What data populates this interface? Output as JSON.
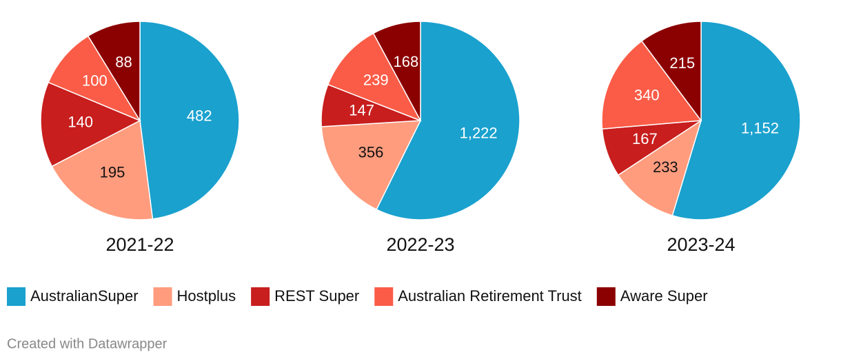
{
  "chart_data": [
    {
      "type": "pie",
      "title": "2021-22",
      "values": [
        482,
        195,
        140,
        100,
        88
      ],
      "value_labels": [
        "482",
        "195",
        "140",
        "100",
        "88"
      ]
    },
    {
      "type": "pie",
      "title": "2022-23",
      "values": [
        1222,
        356,
        147,
        239,
        168
      ],
      "value_labels": [
        "1,222",
        "356",
        "147",
        "239",
        "168"
      ]
    },
    {
      "type": "pie",
      "title": "2023-24",
      "values": [
        1152,
        233,
        167,
        340,
        215
      ],
      "value_labels": [
        "1,152",
        "233",
        "167",
        "340",
        "215"
      ]
    }
  ],
  "legend": {
    "categories": [
      "AustralianSuper",
      "Hostplus",
      "REST Super",
      "Australian Retirement Trust",
      "Aware Super"
    ],
    "colors": [
      "#1aa1ce",
      "#ff9c7e",
      "#c81e1e",
      "#fb5c47",
      "#8b0000"
    ]
  },
  "credit": "Created with Datawrapper"
}
